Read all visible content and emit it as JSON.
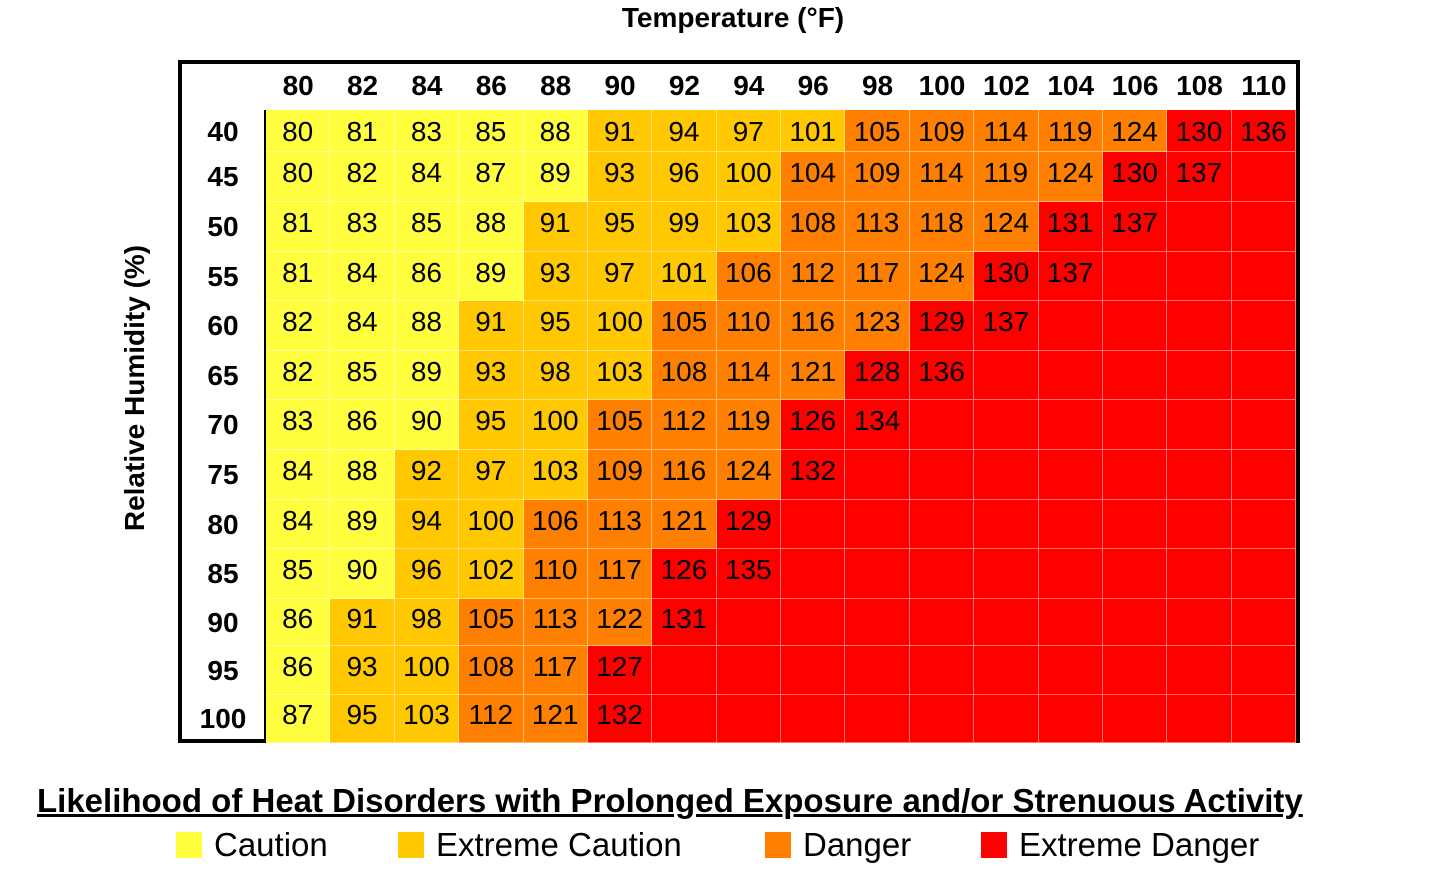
{
  "chart_data": {
    "type": "heatmap",
    "xlabel": "Temperature (°F)",
    "ylabel": "Relative Humidity (%)",
    "x": [
      80,
      82,
      84,
      86,
      88,
      90,
      92,
      94,
      96,
      98,
      100,
      102,
      104,
      106,
      108,
      110
    ],
    "y": [
      40,
      45,
      50,
      55,
      60,
      65,
      70,
      75,
      80,
      85,
      90,
      95,
      100
    ],
    "values": [
      [
        80,
        81,
        83,
        85,
        88,
        91,
        94,
        97,
        101,
        105,
        109,
        114,
        119,
        124,
        130,
        136
      ],
      [
        80,
        82,
        84,
        87,
        89,
        93,
        96,
        100,
        104,
        109,
        114,
        119,
        124,
        130,
        137,
        null
      ],
      [
        81,
        83,
        85,
        88,
        91,
        95,
        99,
        103,
        108,
        113,
        118,
        124,
        131,
        137,
        null,
        null
      ],
      [
        81,
        84,
        86,
        89,
        93,
        97,
        101,
        106,
        112,
        117,
        124,
        130,
        137,
        null,
        null,
        null
      ],
      [
        82,
        84,
        88,
        91,
        95,
        100,
        105,
        110,
        116,
        123,
        129,
        137,
        null,
        null,
        null,
        null
      ],
      [
        82,
        85,
        89,
        93,
        98,
        103,
        108,
        114,
        121,
        128,
        136,
        null,
        null,
        null,
        null,
        null
      ],
      [
        83,
        86,
        90,
        95,
        100,
        105,
        112,
        119,
        126,
        134,
        null,
        null,
        null,
        null,
        null,
        null
      ],
      [
        84,
        88,
        92,
        97,
        103,
        109,
        116,
        124,
        132,
        null,
        null,
        null,
        null,
        null,
        null,
        null
      ],
      [
        84,
        89,
        94,
        100,
        106,
        113,
        121,
        129,
        null,
        null,
        null,
        null,
        null,
        null,
        null,
        null
      ],
      [
        85,
        90,
        96,
        102,
        110,
        117,
        126,
        135,
        null,
        null,
        null,
        null,
        null,
        null,
        null,
        null
      ],
      [
        86,
        91,
        98,
        105,
        113,
        122,
        131,
        null,
        null,
        null,
        null,
        null,
        null,
        null,
        null,
        null
      ],
      [
        86,
        93,
        100,
        108,
        117,
        127,
        null,
        null,
        null,
        null,
        null,
        null,
        null,
        null,
        null,
        null
      ],
      [
        87,
        95,
        103,
        112,
        121,
        132,
        null,
        null,
        null,
        null,
        null,
        null,
        null,
        null,
        null,
        null
      ]
    ],
    "legend": {
      "title": "Likelihood of Heat Disorders with Prolonged Exposure and/or Strenuous Activity",
      "placement": "bottom",
      "categories": [
        {
          "label": "Caution",
          "color": "#FFFF40",
          "min": 80,
          "max": 90
        },
        {
          "label": "Extreme Caution",
          "color": "#FFC800",
          "min": 91,
          "max": 103
        },
        {
          "label": "Danger",
          "color": "#FF8000",
          "min": 104,
          "max": 125
        },
        {
          "label": "Extreme Danger",
          "color": "#FF0000",
          "min": 126,
          "max": null
        }
      ]
    }
  }
}
